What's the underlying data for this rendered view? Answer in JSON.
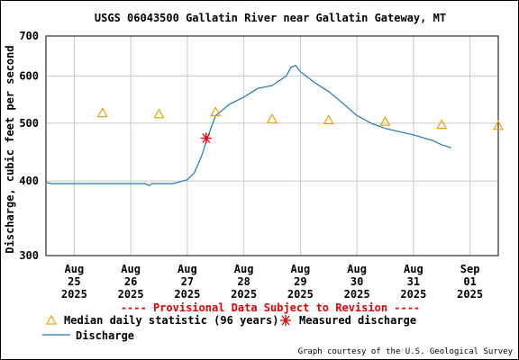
{
  "chart_data": {
    "type": "line",
    "title": "USGS 06043500 Gallatin River near Gallatin Gateway, MT",
    "ylabel": "Discharge, cubic feet per second",
    "xlabel": "",
    "y_scale": "log",
    "ylim": [
      300,
      700
    ],
    "y_ticks": [
      300,
      400,
      500,
      600,
      700
    ],
    "xlim": [
      "2025-08-24T12:00",
      "2025-09-01T12:00"
    ],
    "x_ticks": [
      {
        "t": "2025-08-25T00:00",
        "label": [
          "Aug",
          "25",
          "2025"
        ]
      },
      {
        "t": "2025-08-26T00:00",
        "label": [
          "Aug",
          "26",
          "2025"
        ]
      },
      {
        "t": "2025-08-27T00:00",
        "label": [
          "Aug",
          "27",
          "2025"
        ]
      },
      {
        "t": "2025-08-28T00:00",
        "label": [
          "Aug",
          "28",
          "2025"
        ]
      },
      {
        "t": "2025-08-29T00:00",
        "label": [
          "Aug",
          "29",
          "2025"
        ]
      },
      {
        "t": "2025-08-30T00:00",
        "label": [
          "Aug",
          "30",
          "2025"
        ]
      },
      {
        "t": "2025-08-31T00:00",
        "label": [
          "Aug",
          "31",
          "2025"
        ]
      },
      {
        "t": "2025-09-01T00:00",
        "label": [
          "Sep",
          "01",
          "2025"
        ]
      }
    ],
    "grid": true,
    "provisional_note": "---- Provisional Data Subject to Revision ----",
    "credit": "Graph courtesy of the U.S. Geological Survey",
    "colors": {
      "discharge": "#1f77b4",
      "median": "#e8a000",
      "measured": "#e00000",
      "grid": "#c8c8c8",
      "note": "#e00000"
    },
    "series": [
      {
        "name": "Discharge",
        "x": [
          "2025-08-24T12:00",
          "2025-08-24T14:00",
          "2025-08-25T00:00",
          "2025-08-25T12:00",
          "2025-08-26T06:00",
          "2025-08-26T08:00",
          "2025-08-26T09:00",
          "2025-08-26T12:00",
          "2025-08-26T18:00",
          "2025-08-26T20:00",
          "2025-08-27T00:00",
          "2025-08-27T03:00",
          "2025-08-27T06:00",
          "2025-08-27T09:00",
          "2025-08-27T12:00",
          "2025-08-27T18:00",
          "2025-08-28T00:00",
          "2025-08-28T06:00",
          "2025-08-28T12:00",
          "2025-08-28T18:00",
          "2025-08-28T20:00",
          "2025-08-28T22:00",
          "2025-08-29T00:00",
          "2025-08-29T06:00",
          "2025-08-29T12:00",
          "2025-08-29T18:00",
          "2025-08-30T00:00",
          "2025-08-30T06:00",
          "2025-08-30T12:00",
          "2025-08-31T00:00",
          "2025-08-31T08:00",
          "2025-08-31T12:00",
          "2025-08-31T16:00"
        ],
        "y": [
          398,
          396,
          396,
          396,
          396,
          393,
          396,
          396,
          396,
          398,
          402,
          413,
          440,
          478,
          515,
          538,
          553,
          572,
          578,
          600,
          620,
          625,
          610,
          585,
          565,
          540,
          515,
          500,
          490,
          478,
          468,
          460,
          455
        ]
      },
      {
        "name": "Median daily statistic (96 years)",
        "marker": "triangle",
        "x": [
          "2025-08-25T12:00",
          "2025-08-26T12:00",
          "2025-08-27T12:00",
          "2025-08-28T12:00",
          "2025-08-29T12:00",
          "2025-08-30T12:00",
          "2025-08-31T12:00",
          "2025-09-01T12:00"
        ],
        "y": [
          520,
          518,
          522,
          508,
          506,
          503,
          497,
          495
        ]
      },
      {
        "name": "Measured discharge",
        "marker": "asterisk",
        "x": [
          "2025-08-27T08:00"
        ],
        "y": [
          472
        ]
      }
    ],
    "legend": [
      {
        "symbol": "triangle",
        "label": "Median daily statistic (96 years)"
      },
      {
        "symbol": "asterisk",
        "label": "Measured discharge"
      },
      {
        "symbol": "line",
        "label": "Discharge"
      }
    ]
  }
}
